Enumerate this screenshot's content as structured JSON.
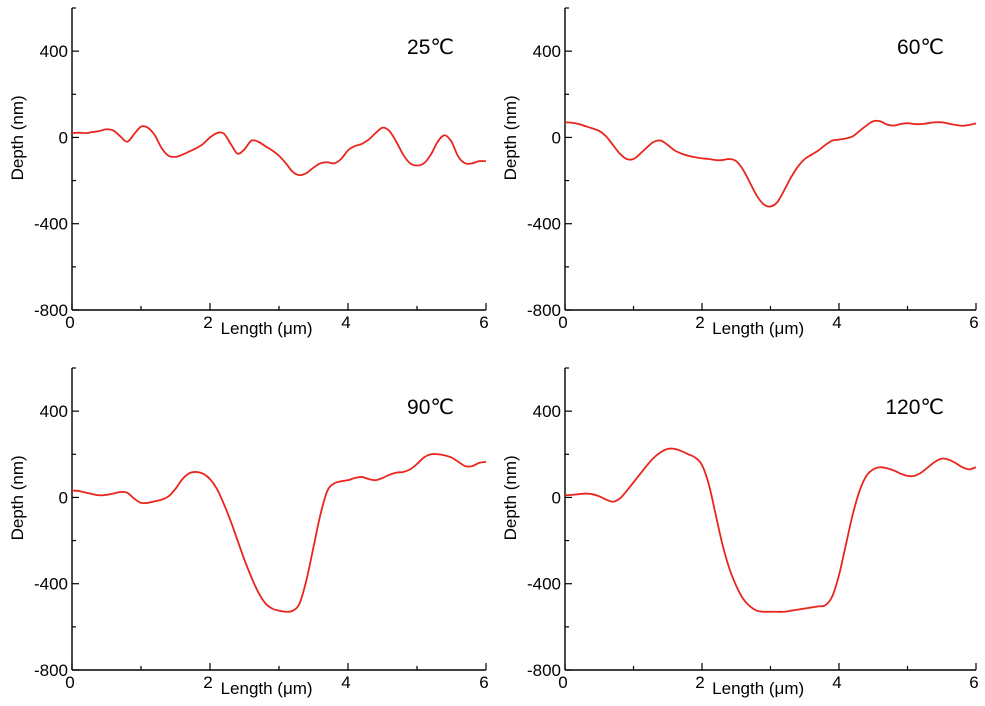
{
  "chart_data": [
    {
      "type": "line",
      "panel_label": "25℃",
      "xlabel": "Length (μm)",
      "ylabel": "Depth (nm)",
      "xlim": [
        0,
        6
      ],
      "ylim": [
        -800,
        600
      ],
      "xticks": [
        "0",
        "2",
        "4",
        "6"
      ],
      "yticks": [
        "400",
        "0",
        "-400",
        "-800"
      ],
      "grid": false,
      "color": "#e8261d",
      "x": [
        0,
        0.1,
        0.2,
        0.3,
        0.4,
        0.5,
        0.6,
        0.7,
        0.8,
        0.9,
        1.0,
        1.1,
        1.2,
        1.3,
        1.4,
        1.5,
        1.6,
        1.7,
        1.8,
        1.9,
        2.0,
        2.1,
        2.2,
        2.3,
        2.4,
        2.5,
        2.6,
        2.7,
        2.8,
        2.9,
        3.0,
        3.1,
        3.2,
        3.3,
        3.4,
        3.5,
        3.6,
        3.7,
        3.8,
        3.9,
        4.0,
        4.1,
        4.2,
        4.3,
        4.4,
        4.5,
        4.6,
        4.7,
        4.8,
        4.9,
        5.0,
        5.1,
        5.2,
        5.3,
        5.4,
        5.5,
        5.6,
        5.7,
        5.8,
        5.9,
        6.0
      ],
      "y": [
        20,
        22,
        20,
        25,
        30,
        38,
        32,
        5,
        -20,
        15,
        50,
        45,
        10,
        -50,
        -85,
        -90,
        -80,
        -65,
        -50,
        -30,
        0,
        20,
        18,
        -30,
        -75,
        -55,
        -15,
        -20,
        -40,
        -60,
        -85,
        -120,
        -160,
        -175,
        -165,
        -140,
        -120,
        -115,
        -120,
        -100,
        -60,
        -40,
        -30,
        -10,
        20,
        45,
        30,
        -20,
        -80,
        -120,
        -130,
        -120,
        -80,
        -20,
        10,
        -20,
        -90,
        -120,
        -120,
        -110,
        -110
      ]
    },
    {
      "type": "line",
      "panel_label": "60℃",
      "xlabel": "Length (μm)",
      "ylabel": "Depth (nm)",
      "xlim": [
        0,
        6
      ],
      "ylim": [
        -800,
        600
      ],
      "xticks": [
        "0",
        "2",
        "4",
        "6"
      ],
      "yticks": [
        "400",
        "0",
        "-400",
        "-800"
      ],
      "grid": false,
      "color": "#e8261d",
      "x": [
        0,
        0.1,
        0.2,
        0.3,
        0.4,
        0.5,
        0.6,
        0.7,
        0.8,
        0.9,
        1.0,
        1.1,
        1.2,
        1.3,
        1.4,
        1.5,
        1.6,
        1.7,
        1.8,
        1.9,
        2.0,
        2.1,
        2.2,
        2.3,
        2.4,
        2.5,
        2.6,
        2.7,
        2.8,
        2.9,
        3.0,
        3.1,
        3.2,
        3.3,
        3.4,
        3.5,
        3.6,
        3.7,
        3.8,
        3.9,
        4.0,
        4.1,
        4.2,
        4.3,
        4.4,
        4.5,
        4.6,
        4.7,
        4.8,
        4.9,
        5.0,
        5.1,
        5.2,
        5.3,
        5.4,
        5.5,
        5.6,
        5.7,
        5.8,
        5.9,
        6.0
      ],
      "y": [
        70,
        68,
        62,
        52,
        42,
        30,
        5,
        -35,
        -75,
        -100,
        -100,
        -75,
        -45,
        -20,
        -15,
        -35,
        -60,
        -75,
        -85,
        -92,
        -97,
        -100,
        -105,
        -105,
        -100,
        -110,
        -150,
        -210,
        -270,
        -310,
        -320,
        -300,
        -245,
        -185,
        -135,
        -100,
        -80,
        -60,
        -35,
        -15,
        -10,
        -5,
        5,
        30,
        55,
        75,
        75,
        60,
        55,
        62,
        66,
        62,
        62,
        66,
        70,
        70,
        64,
        58,
        54,
        58,
        65
      ]
    },
    {
      "type": "line",
      "panel_label": "90℃",
      "xlabel": "Length (μm)",
      "ylabel": "Depth (nm)",
      "xlim": [
        0,
        6
      ],
      "ylim": [
        -800,
        600
      ],
      "xticks": [
        "0",
        "2",
        "4",
        "6"
      ],
      "yticks": [
        "400",
        "0",
        "-400",
        "-800"
      ],
      "grid": false,
      "color": "#e8261d",
      "x": [
        0,
        0.1,
        0.2,
        0.3,
        0.4,
        0.5,
        0.6,
        0.7,
        0.8,
        0.9,
        1.0,
        1.1,
        1.2,
        1.3,
        1.4,
        1.5,
        1.6,
        1.7,
        1.8,
        1.9,
        2.0,
        2.1,
        2.2,
        2.3,
        2.4,
        2.5,
        2.6,
        2.7,
        2.8,
        2.9,
        3.0,
        3.1,
        3.2,
        3.3,
        3.4,
        3.5,
        3.6,
        3.7,
        3.8,
        3.9,
        4.0,
        4.1,
        4.2,
        4.3,
        4.4,
        4.5,
        4.6,
        4.7,
        4.8,
        4.9,
        5.0,
        5.1,
        5.2,
        5.3,
        5.4,
        5.5,
        5.6,
        5.7,
        5.8,
        5.9,
        6.0
      ],
      "y": [
        32,
        30,
        22,
        15,
        10,
        12,
        18,
        25,
        22,
        -5,
        -25,
        -25,
        -18,
        -10,
        5,
        40,
        85,
        112,
        118,
        110,
        85,
        40,
        -30,
        -110,
        -200,
        -290,
        -370,
        -440,
        -490,
        -515,
        -525,
        -530,
        -525,
        -490,
        -380,
        -230,
        -80,
        30,
        65,
        75,
        80,
        90,
        95,
        85,
        80,
        90,
        105,
        115,
        118,
        130,
        155,
        185,
        200,
        200,
        195,
        185,
        165,
        145,
        145,
        160,
        165
      ]
    },
    {
      "type": "line",
      "panel_label": "120℃",
      "xlabel": "Length (μm)",
      "ylabel": "Depth (nm)",
      "xlim": [
        0,
        6
      ],
      "ylim": [
        -800,
        600
      ],
      "xticks": [
        "0",
        "2",
        "4",
        "6"
      ],
      "yticks": [
        "400",
        "0",
        "-400",
        "-800"
      ],
      "grid": false,
      "color": "#e8261d",
      "x": [
        0,
        0.1,
        0.2,
        0.3,
        0.4,
        0.5,
        0.6,
        0.7,
        0.8,
        0.9,
        1.0,
        1.1,
        1.2,
        1.3,
        1.4,
        1.5,
        1.6,
        1.7,
        1.8,
        1.9,
        2.0,
        2.1,
        2.2,
        2.3,
        2.4,
        2.5,
        2.6,
        2.7,
        2.8,
        2.9,
        3.0,
        3.1,
        3.2,
        3.3,
        3.4,
        3.5,
        3.6,
        3.7,
        3.8,
        3.9,
        4.0,
        4.1,
        4.2,
        4.3,
        4.4,
        4.5,
        4.6,
        4.7,
        4.8,
        4.9,
        5.0,
        5.1,
        5.2,
        5.3,
        5.4,
        5.5,
        5.6,
        5.7,
        5.8,
        5.9,
        6.0
      ],
      "y": [
        10,
        12,
        15,
        18,
        15,
        5,
        -10,
        -20,
        -5,
        30,
        70,
        110,
        150,
        185,
        210,
        225,
        225,
        215,
        200,
        185,
        150,
        60,
        -80,
        -220,
        -330,
        -410,
        -470,
        -505,
        -525,
        -530,
        -530,
        -530,
        -530,
        -525,
        -520,
        -515,
        -510,
        -505,
        -500,
        -460,
        -360,
        -220,
        -80,
        30,
        100,
        130,
        140,
        135,
        125,
        110,
        100,
        100,
        115,
        140,
        165,
        180,
        175,
        160,
        140,
        130,
        140
      ]
    }
  ]
}
